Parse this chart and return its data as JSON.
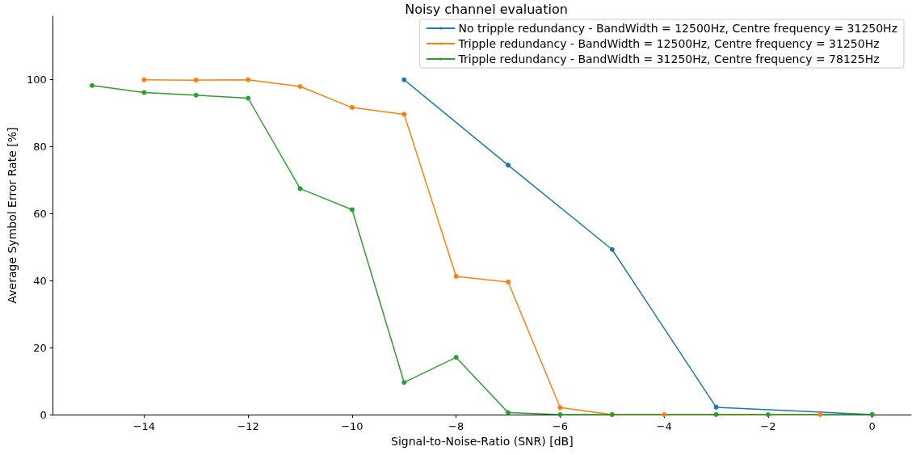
{
  "chart_data": {
    "type": "line",
    "title": "Noisy channel evaluation",
    "xlabel": "Signal-to-Noise-Ratio (SNR) [dB]",
    "ylabel": "Average Symbol Error Rate [%]",
    "xlim": [
      -15.75,
      0.75
    ],
    "xticks": [
      -14,
      -12,
      -10,
      -8,
      -6,
      -4,
      -2,
      0
    ],
    "ylim": [
      0,
      119
    ],
    "yticks": [
      0,
      20,
      40,
      60,
      80,
      100
    ],
    "grid": false,
    "legend": "top right",
    "marker": "circle",
    "line_style": "solid",
    "series": [
      {
        "name": "No tripple redundancy - BandWidth = 12500Hz, Centre frequency = 31250Hz",
        "color": "#1f77b4",
        "x": [
          -9,
          -7,
          -5,
          -3,
          0
        ],
        "values": [
          100,
          74.5,
          49.3,
          2.2,
          0
        ]
      },
      {
        "name": "Tripple redundancy - BandWidth = 12500Hz, Centre frequency = 31250Hz",
        "color": "#ff7f0e",
        "x": [
          -14,
          -13,
          -12,
          -11,
          -10,
          -9,
          -8,
          -7,
          -6,
          -5,
          -4,
          -3,
          -2,
          -1
        ],
        "values": [
          100,
          99.9,
          100,
          98,
          91.7,
          89.7,
          41.3,
          39.6,
          2.1,
          0,
          0,
          null,
          null,
          0
        ]
      },
      {
        "name": "Tripple redundancy - BandWidth = 31250Hz, Centre frequency = 78125Hz",
        "color": "#2ca02c",
        "x": [
          -15,
          -14,
          -13,
          -12,
          -11,
          -10,
          -9,
          -8,
          -7,
          -6,
          -5,
          -3,
          -2,
          0
        ],
        "values": [
          98.3,
          96.2,
          95.4,
          94.5,
          67.5,
          61.2,
          9.6,
          17.1,
          0.6,
          0,
          0,
          0,
          0,
          0
        ]
      }
    ]
  }
}
